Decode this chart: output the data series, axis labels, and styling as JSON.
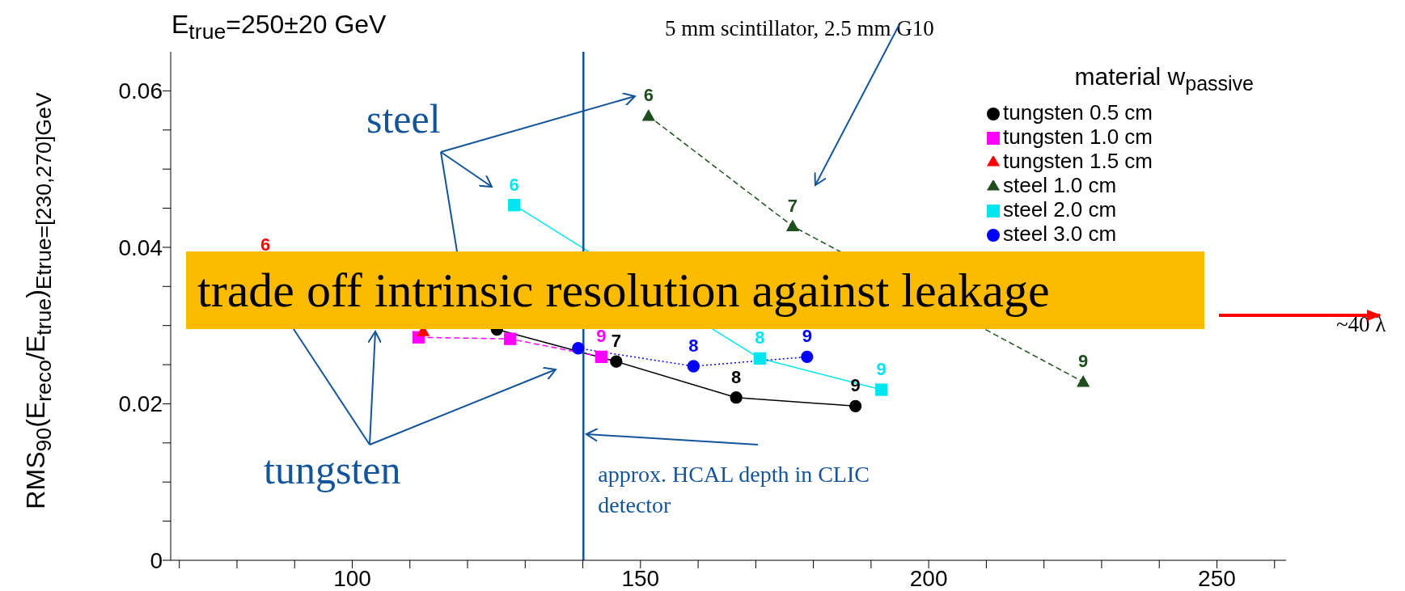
{
  "chart_data": {
    "type": "line",
    "title": "E$_{true}$=250±20 GeV",
    "ylabel": "RMS$_{90}$(E$_{reco}$/E$_{true}$)$_{Etrue=[230,270]GeV}$",
    "legend_title": "material  w$_{passive}$",
    "legend": "top right",
    "xlim": [
      68.5,
      262
    ],
    "ylim": [
      0,
      0.065
    ],
    "xticks": [
      {
        "value": 70,
        "label": null
      },
      {
        "value": 80,
        "label": null
      },
      {
        "value": 90,
        "label": null
      },
      100,
      {
        "value": 110,
        "label": null
      },
      {
        "value": 120,
        "label": null
      },
      {
        "value": 130,
        "label": null
      },
      {
        "value": 140,
        "label": null
      },
      150,
      {
        "value": 160,
        "label": null
      },
      {
        "value": 170,
        "label": null
      },
      {
        "value": 180,
        "label": null
      },
      {
        "value": 190,
        "label": null
      },
      200,
      {
        "value": 210,
        "label": null
      },
      {
        "value": 220,
        "label": null
      },
      {
        "value": 230,
        "label": null
      },
      {
        "value": 240,
        "label": null
      },
      250,
      {
        "value": 260,
        "label": null
      }
    ],
    "yticks": [
      0,
      {
        "value": 0.005,
        "label": null
      },
      {
        "value": 0.01,
        "label": null
      },
      {
        "value": 0.015,
        "label": null
      },
      0.02,
      {
        "value": 0.025,
        "label": null
      },
      {
        "value": 0.03,
        "label": null
      },
      {
        "value": 0.035,
        "label": null
      },
      0.04,
      {
        "value": 0.045,
        "label": null
      },
      {
        "value": 0.05,
        "label": null
      },
      {
        "value": 0.055,
        "label": null
      },
      0.06
    ],
    "series": [
      {
        "name": "steel 3.0 cm",
        "color": "#0000ff",
        "marker": "circle",
        "line_style": "dotted",
        "x": [
          139.2,
          159.2,
          178.9
        ],
        "values": [
          0.0271,
          0.0248,
          0.026
        ]
      },
      {
        "name": "steel 2.0 cm",
        "color": "#00e5ee",
        "marker": "square",
        "line_style": "solid",
        "x": [
          128.1,
          170.7,
          191.8
        ],
        "values": [
          0.0454,
          0.0258,
          0.0218
        ]
      },
      {
        "name": "steel 1.0 cm",
        "color": "#1f4f1f",
        "marker": "triangle",
        "line_style": "dashed",
        "x": [
          151.4,
          176.4,
          226.8
        ],
        "values": [
          0.0568,
          0.0427,
          0.0228
        ]
      },
      {
        "name": "tungsten 1.5 cm",
        "color": "#ff0000",
        "marker": "triangle",
        "line_style": "dashed",
        "x": [
          112.3
        ],
        "values": [
          0.0293
        ]
      },
      {
        "name": "tungsten 1.0 cm",
        "color": "#ff00ff",
        "marker": "square",
        "line_style": "dashed",
        "x": [
          111.5,
          127.4,
          143.2
        ],
        "values": [
          0.0285,
          0.0283,
          0.026
        ]
      },
      {
        "name": "tungsten 0.5 cm",
        "color": "#000000",
        "marker": "circle",
        "line_style": "solid",
        "x": [
          125.1,
          145.8,
          166.6,
          187.3
        ],
        "values": [
          0.0295,
          0.0254,
          0.0208,
          0.0197
        ]
      }
    ],
    "ref_lines": [
      {
        "axis": "x",
        "value": 140.1,
        "label": "approx. HCAL depth in CLIC detector",
        "color": "#14549a"
      }
    ],
    "annotations": [
      "trade off intrinsic resolution against leakage",
      "steel",
      "tungsten",
      "5 mm scintillator, 2.5 mm G10",
      "~40 λ",
      "6",
      {
        "text": "8",
        "x": 159.2,
        "y": 0.0248
      },
      {
        "text": "9",
        "x": 178.9,
        "y": 0.026
      },
      {
        "text": "6",
        "x": 128.1,
        "y": 0.0454
      },
      {
        "text": "8",
        "x": 170.7,
        "y": 0.0258
      },
      {
        "text": "9",
        "x": 191.8,
        "y": 0.0218
      },
      {
        "text": "6",
        "x": 151.4,
        "y": 0.0568
      },
      {
        "text": "7",
        "x": 176.4,
        "y": 0.0427
      },
      {
        "text": "9",
        "x": 226.8,
        "y": 0.0228
      },
      {
        "text": "9",
        "x": 143.2,
        "y": 0.026
      },
      {
        "text": "7",
        "x": 145.8,
        "y": 0.0254
      },
      {
        "text": "8",
        "x": 166.6,
        "y": 0.0208
      },
      {
        "text": "9",
        "x": 187.3,
        "y": 0.0197
      }
    ]
  }
}
